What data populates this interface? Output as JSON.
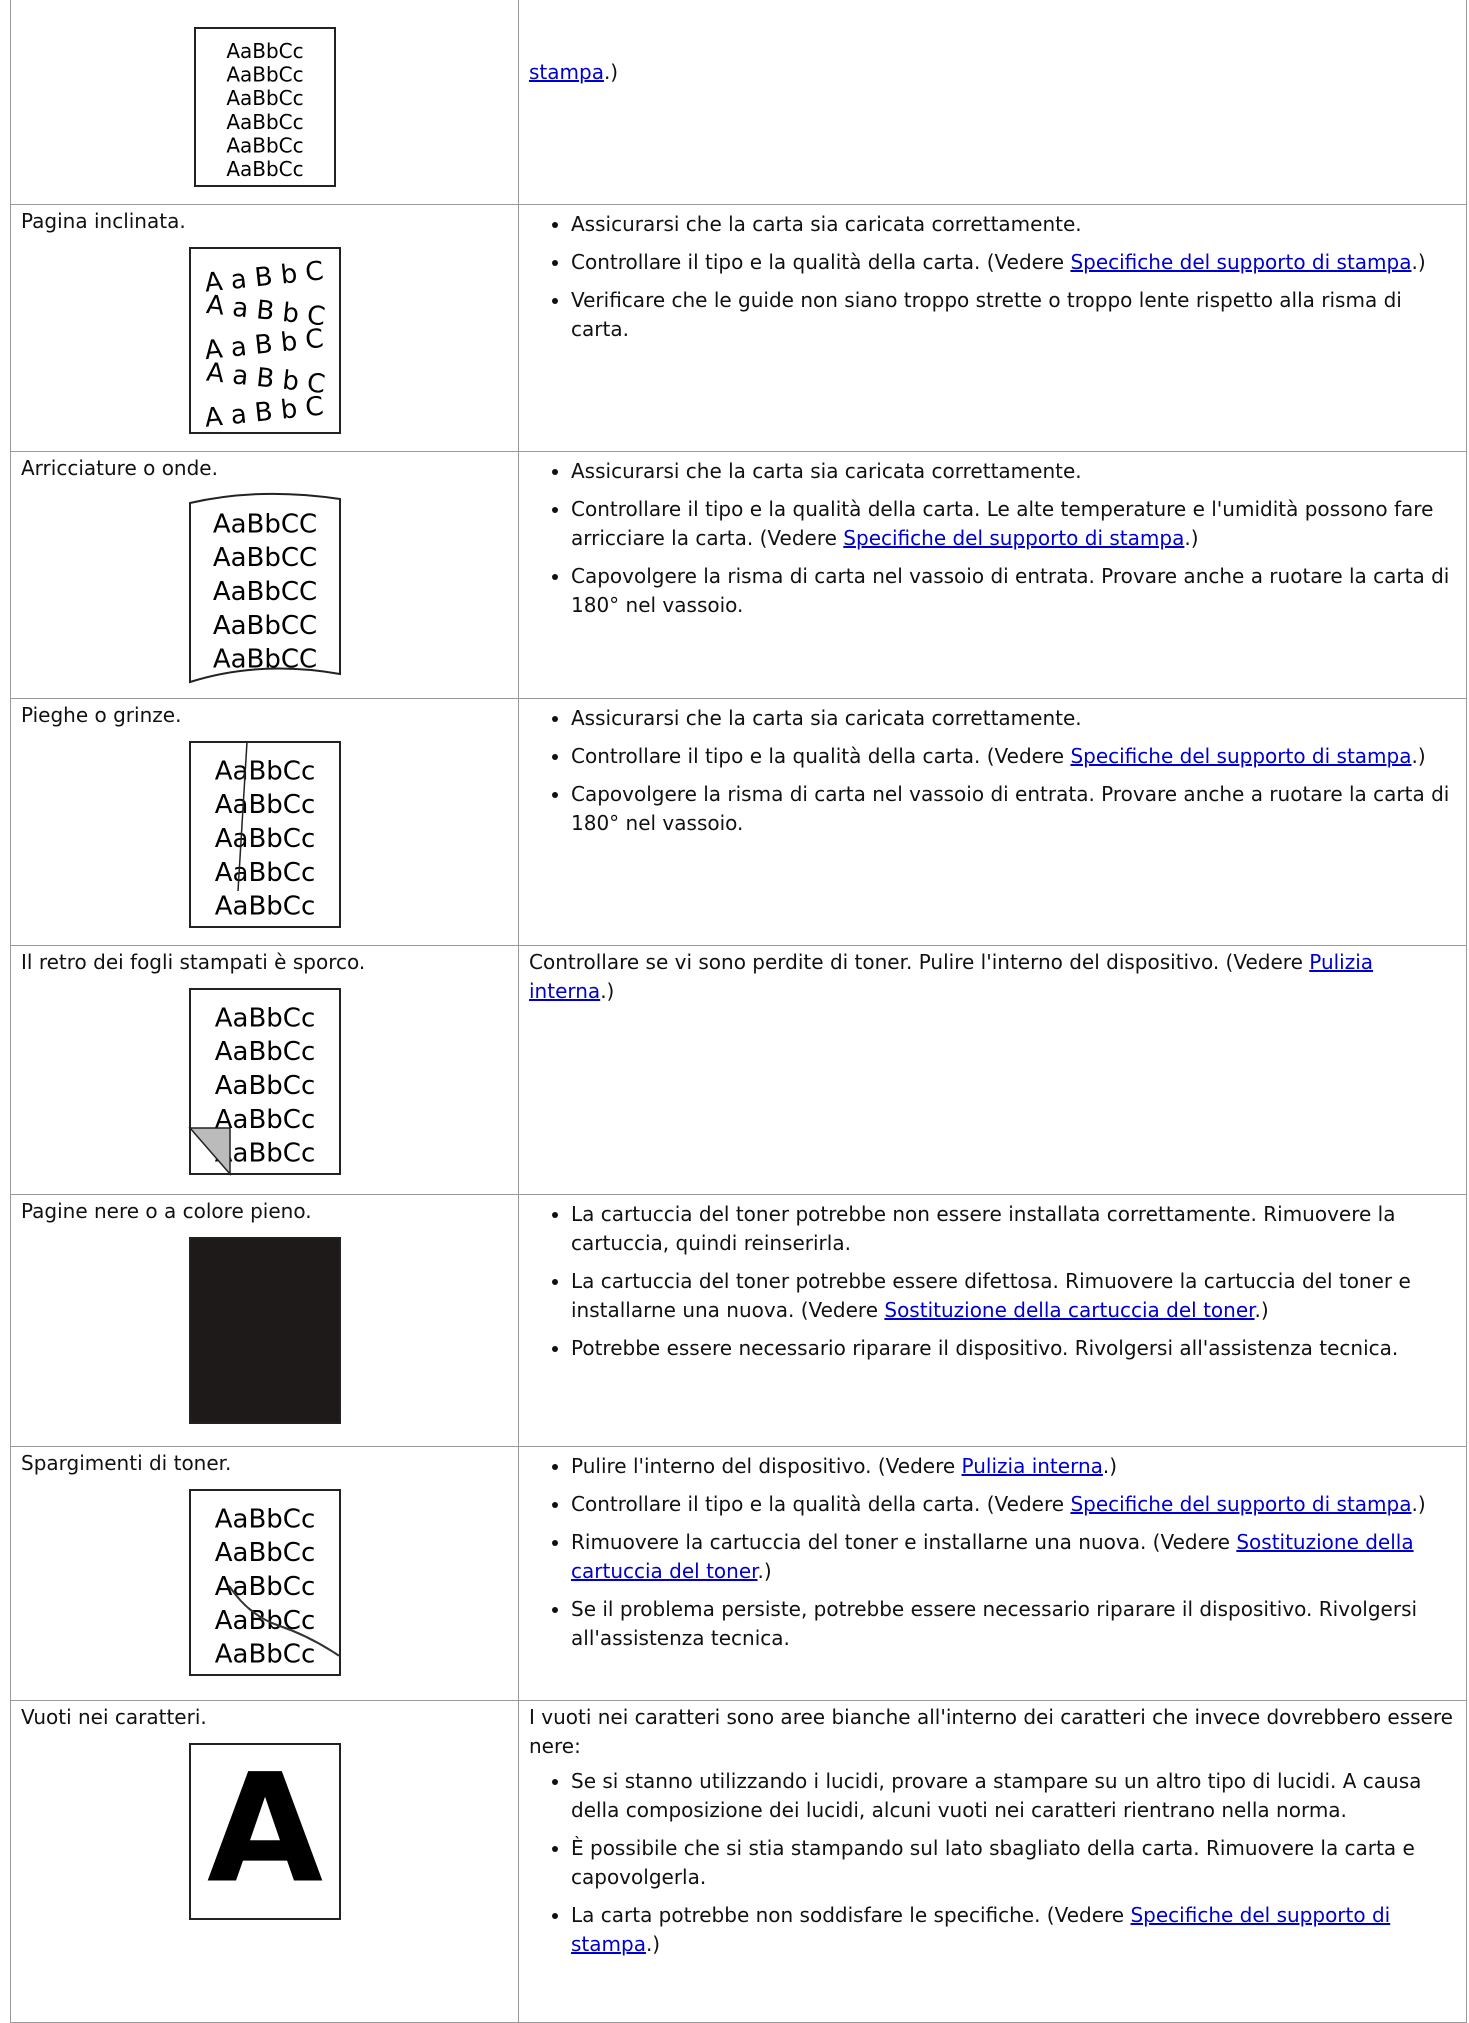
{
  "table": {
    "rows": [
      {
        "problem": null,
        "image": {
          "lines": [
            "AaBbCc",
            "AaBbCc",
            "AaBbCc",
            "AaBbCc",
            "AaBbCc",
            "AaBbCc"
          ]
        },
        "content": [
          {
            "p": [
              {
                "link": "stampa"
              },
              ".)"
            ]
          }
        ]
      },
      {
        "problem": "Pagina inclinata.",
        "image": {
          "lines": [
            "A a B b C",
            "A a B b C",
            "A a B b C",
            "A a B b C",
            "A a B b C"
          ]
        },
        "content": [
          {
            "bullets": [
              [
                "Assicurarsi che la carta sia caricata correttamente."
              ],
              [
                "Controllare il tipo e la qualità della carta. (Vedere ",
                {
                  "link": "Specifiche del supporto di stampa"
                },
                ".)"
              ],
              [
                "Verificare che le guide non siano troppo strette o troppo lente rispetto alla risma di carta."
              ]
            ]
          }
        ]
      },
      {
        "problem": "Arricciature o onde.",
        "image": {
          "lines": [
            "AaBbCC",
            "AaBbCC",
            "AaBbCC",
            "AaBbCC",
            "AaBbCC"
          ]
        },
        "content": [
          {
            "bullets": [
              [
                "Assicurarsi che la carta sia caricata correttamente."
              ],
              [
                "Controllare il tipo e la qualità della carta. Le alte temperature e l'umidità possono fare arricciare la carta. (Vedere ",
                {
                  "link": "Specifiche del supporto di stampa"
                },
                ".)"
              ],
              [
                "Capovolgere la risma di carta nel vassoio di entrata. Provare anche a ruotare la carta di 180° nel vassoio."
              ]
            ]
          }
        ]
      },
      {
        "problem": "Pieghe o grinze.",
        "image": {
          "lines": [
            "AaBbCc",
            "AaBbCc",
            "AaBbCc",
            "AaBbCc",
            "AaBbCc"
          ]
        },
        "content": [
          {
            "bullets": [
              [
                "Assicurarsi che la carta sia caricata correttamente."
              ],
              [
                "Controllare il tipo e la qualità della carta. (Vedere ",
                {
                  "link": "Specifiche del supporto di stampa"
                },
                ".)"
              ],
              [
                "Capovolgere la risma di carta nel vassoio di entrata. Provare anche a ruotare la carta di 180° nel vassoio."
              ]
            ]
          }
        ]
      },
      {
        "problem": "Il retro dei fogli stampati è sporco.",
        "image": {
          "lines": [
            "AaBbCc",
            "AaBbCc",
            "AaBbCc",
            "AaBbCc",
            "AaBbCc"
          ]
        },
        "content": [
          {
            "p": [
              "Controllare se vi sono perdite di toner. Pulire l'interno del dispositivo. (Vedere ",
              {
                "link": "Pulizia interna"
              },
              ".)"
            ]
          }
        ]
      },
      {
        "problem": "Pagine nere o a colore pieno.",
        "image": {
          "fill": "#1e1a1a"
        },
        "content": [
          {
            "bullets": [
              [
                "La cartuccia del toner potrebbe non essere installata correttamente. Rimuovere la cartuccia, quindi reinserirla."
              ],
              [
                "La cartuccia del toner potrebbe essere difettosa. Rimuovere la cartuccia del toner e installarne una nuova. (Vedere ",
                {
                  "link": "Sostituzione della cartuccia del toner"
                },
                ".)"
              ],
              [
                "Potrebbe essere necessario riparare il dispositivo. Rivolgersi all'assistenza tecnica."
              ]
            ]
          }
        ]
      },
      {
        "problem": "Spargimenti di toner.",
        "image": {
          "lines": [
            "AaBbCc",
            "AaBbCc",
            "AaBbCc",
            "AaBbCc",
            "AaBbCc"
          ]
        },
        "content": [
          {
            "bullets": [
              [
                "Pulire l'interno del dispositivo. (Vedere ",
                {
                  "link": "Pulizia interna"
                },
                ".)"
              ],
              [
                "Controllare il tipo e la qualità della carta. (Vedere ",
                {
                  "link": "Specifiche del supporto di stampa"
                },
                ".)"
              ],
              [
                "Rimuovere la cartuccia del toner e installarne una nuova. (Vedere ",
                {
                  "link": "Sostituzione della cartuccia del toner"
                },
                ".)"
              ],
              [
                "Se il problema persiste, potrebbe essere necessario riparare il dispositivo. Rivolgersi all'assistenza tecnica."
              ]
            ]
          }
        ]
      },
      {
        "problem": "Vuoti nei caratteri.",
        "image": {
          "lines": [
            "A"
          ]
        },
        "content": [
          {
            "p": [
              "I vuoti nei caratteri sono aree bianche all'interno dei caratteri che invece dovrebbero essere nere:"
            ]
          },
          {
            "bullets": [
              [
                "Se si stanno utilizzando i lucidi, provare a stampare su un altro tipo di lucidi. A causa della composizione dei lucidi, alcuni vuoti nei caratteri rientrano nella norma."
              ],
              [
                "È possibile che si stia stampando sul lato sbagliato della carta. Rimuovere la carta e capovolgerla."
              ],
              [
                "La carta potrebbe non soddisfare le specifiche. (Vedere ",
                {
                  "link": "Specifiche del supporto di stampa"
                },
                ".)"
              ]
            ]
          }
        ]
      }
    ]
  }
}
